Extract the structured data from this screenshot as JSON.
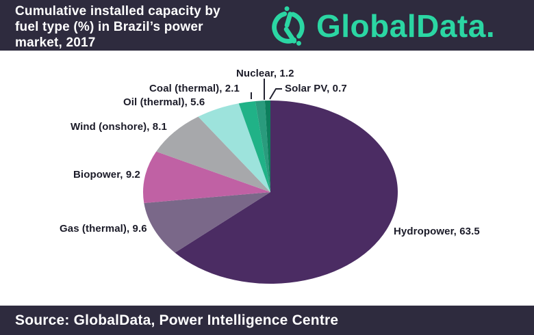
{
  "header": {
    "title": "Cumulative installed capacity by\nfuel type (%) in Brazil’s power\nmarket, 2017",
    "logo_text": "GlobalData."
  },
  "footer": {
    "source": "Source: GlobalData, Power Intelligence Centre"
  },
  "colors": {
    "band_bg": "#2e2b3e",
    "brand_teal": "#2bd6a3",
    "label_text": "#1b1b28",
    "leader_line": "#222230"
  },
  "chart_data": {
    "type": "pie",
    "title": "Cumulative installed capacity by fuel type (%) in Brazil's power market, 2017",
    "unit": "%",
    "start_angle_deg": 0,
    "direction": "clockwise",
    "slices": [
      {
        "label": "Hydropower",
        "value": 63.5,
        "color": "#4b2c63"
      },
      {
        "label": "Gas (thermal)",
        "value": 9.6,
        "color": "#7a6889"
      },
      {
        "label": "Biopower",
        "value": 9.2,
        "color": "#c061a4"
      },
      {
        "label": "Wind (onshore)",
        "value": 8.1,
        "color": "#a7a8ab"
      },
      {
        "label": "Oil (thermal)",
        "value": 5.6,
        "color": "#9de3dc"
      },
      {
        "label": "Coal (thermal)",
        "value": 2.1,
        "color": "#20b287"
      },
      {
        "label": "Nuclear",
        "value": 1.2,
        "color": "#2a9b7d"
      },
      {
        "label": "Solar PV",
        "value": 0.7,
        "color": "#0d7f5d"
      }
    ]
  },
  "labels": {
    "hydropower": "Hydropower, 63.5",
    "gas": "Gas (thermal), 9.6",
    "biopower": "Biopower, 9.2",
    "wind": "Wind (onshore), 8.1",
    "oil": "Oil (thermal), 5.6",
    "coal": "Coal (thermal), 2.1",
    "nuclear": "Nuclear, 1.2",
    "solar": "Solar PV, 0.7"
  }
}
